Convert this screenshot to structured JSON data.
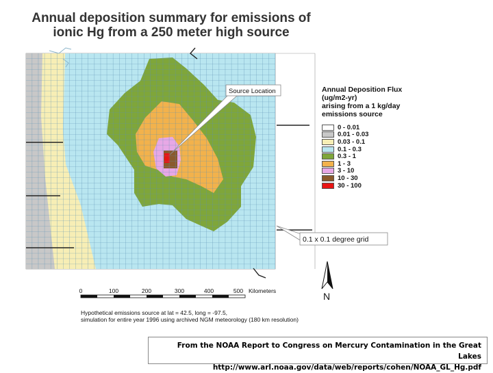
{
  "title": {
    "line1": "Annual deposition summary for emissions of",
    "line2": "ionic Hg from a 250 meter high source"
  },
  "callouts": {
    "source_location": "Source Location",
    "grid_note": "0.1 x 0.1 degree grid"
  },
  "legend": {
    "title_lines": [
      "Annual Deposition Flux",
      "(ug/m2-yr)",
      "arising from a 1 kg/day",
      "emissions source"
    ],
    "items": [
      {
        "label": "0 - 0.01",
        "color": "#ffffff"
      },
      {
        "label": "0.01 - 0.03",
        "color": "#c8c8c8"
      },
      {
        "label": "0.03 - 0.1",
        "color": "#f7eeb5"
      },
      {
        "label": "0.1 - 0.3",
        "color": "#b9e6f0"
      },
      {
        "label": "0.3 - 1",
        "color": "#7fa63a"
      },
      {
        "label": "1 - 3",
        "color": "#f2b24c"
      },
      {
        "label": "3 - 10",
        "color": "#e7a8e6"
      },
      {
        "label": "10 - 30",
        "color": "#8a5a2c"
      },
      {
        "label": "30 - 100",
        "color": "#e81414"
      }
    ]
  },
  "scale_bar": {
    "ticks": [
      "0",
      "100",
      "200",
      "300",
      "400",
      "500"
    ],
    "unit": "Kilometers"
  },
  "north_label": "N",
  "footnote": {
    "line1": "Hypothetical emissions source at lat = 42.5, long = -97.5,",
    "line2": "simulation for entire year 1996 using archived NGM meteorology (180 km resolution)"
  },
  "caption": {
    "line1": "From the NOAA Report to Congress on Mercury Contamination in the Great Lakes",
    "line2": "http://www.arl.noaa.gov/data/web/reports/cohen/NOAA_GL_Hg.pdf"
  }
}
